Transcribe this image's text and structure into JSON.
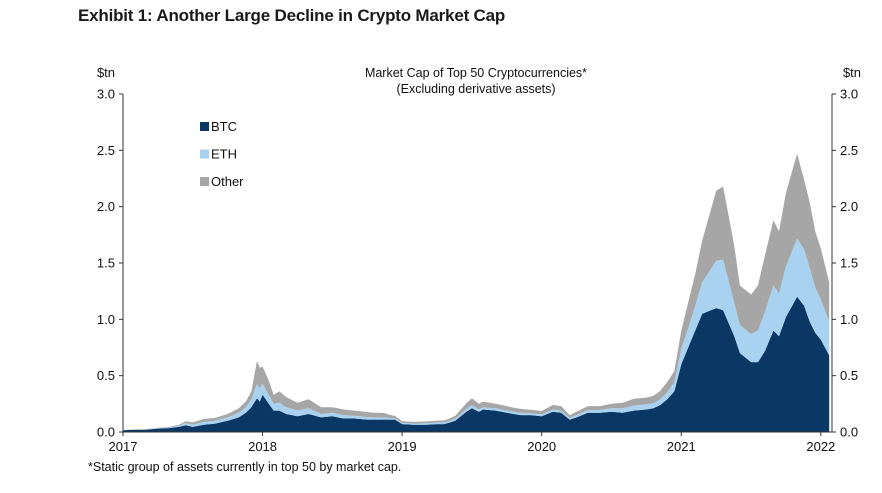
{
  "heading": "Exhibit 1: Another Large Decline in Crypto Market Cap",
  "footnote": "*Static group of assets currently in top 50 by market cap.",
  "colors": {
    "btc": "#0b3764",
    "eth": "#a8d2f0",
    "other": "#a6a6a6"
  },
  "chart_data": {
    "type": "area",
    "stacked": true,
    "title": "Market Cap of Top 50 Cryptocurrencies*",
    "subtitle": "(Excluding derivative assets)",
    "ylabel_left": "$tn",
    "ylabel_right": "$tn",
    "ylim": [
      0,
      3.0
    ],
    "yticks": [
      "0.0",
      "0.5",
      "1.0",
      "1.5",
      "2.0",
      "2.5",
      "3.0"
    ],
    "xlim": [
      2017.0,
      2022.08
    ],
    "xticks": [
      "2017",
      "2018",
      "2019",
      "2020",
      "2021",
      "2022"
    ],
    "legend_position": "top-left",
    "series": [
      {
        "name": "BTC",
        "color": "#0b3764",
        "values": [
          0.016,
          0.02,
          0.02,
          0.03,
          0.035,
          0.045,
          0.06,
          0.045,
          0.065,
          0.075,
          0.1,
          0.13,
          0.17,
          0.22,
          0.3,
          0.27,
          0.33,
          0.26,
          0.19,
          0.19,
          0.16,
          0.14,
          0.16,
          0.13,
          0.14,
          0.12,
          0.12,
          0.11,
          0.11,
          0.11,
          0.11,
          0.11,
          0.11,
          0.07,
          0.065,
          0.065,
          0.07,
          0.07,
          0.08,
          0.1,
          0.14,
          0.18,
          0.21,
          0.18,
          0.2,
          0.19,
          0.17,
          0.16,
          0.15,
          0.15,
          0.14,
          0.18,
          0.17,
          0.11,
          0.13,
          0.17,
          0.17,
          0.18,
          0.17,
          0.19,
          0.2,
          0.21,
          0.24,
          0.29,
          0.36,
          0.6,
          0.75,
          0.9,
          1.05,
          1.1,
          1.08,
          0.85,
          0.7,
          0.62,
          0.62,
          0.72,
          0.9,
          0.85,
          1.02,
          1.2,
          1.12,
          0.98,
          0.88,
          0.82,
          0.68
        ]
      },
      {
        "name": "ETH",
        "color": "#a8d2f0",
        "values": [
          0.001,
          0.001,
          0.001,
          0.002,
          0.005,
          0.01,
          0.02,
          0.02,
          0.025,
          0.025,
          0.03,
          0.04,
          0.05,
          0.07,
          0.13,
          0.12,
          0.1,
          0.08,
          0.06,
          0.07,
          0.06,
          0.05,
          0.05,
          0.03,
          0.03,
          0.03,
          0.025,
          0.022,
          0.02,
          0.02,
          0.018,
          0.015,
          0.012,
          0.01,
          0.01,
          0.012,
          0.014,
          0.014,
          0.015,
          0.018,
          0.02,
          0.025,
          0.03,
          0.02,
          0.02,
          0.02,
          0.02,
          0.02,
          0.02,
          0.017,
          0.016,
          0.02,
          0.02,
          0.015,
          0.02,
          0.025,
          0.025,
          0.03,
          0.04,
          0.045,
          0.045,
          0.045,
          0.05,
          0.065,
          0.08,
          0.14,
          0.17,
          0.22,
          0.28,
          0.42,
          0.45,
          0.3,
          0.25,
          0.25,
          0.28,
          0.35,
          0.4,
          0.38,
          0.45,
          0.52,
          0.5,
          0.48,
          0.4,
          0.36,
          0.3
        ]
      },
      {
        "name": "Other",
        "color": "#a6a6a6",
        "values": [
          0.002,
          0.002,
          0.003,
          0.004,
          0.005,
          0.008,
          0.015,
          0.02,
          0.025,
          0.025,
          0.03,
          0.04,
          0.05,
          0.07,
          0.2,
          0.18,
          0.15,
          0.13,
          0.08,
          0.1,
          0.09,
          0.07,
          0.08,
          0.06,
          0.05,
          0.05,
          0.045,
          0.045,
          0.04,
          0.04,
          0.038,
          0.03,
          0.02,
          0.015,
          0.015,
          0.016,
          0.017,
          0.018,
          0.02,
          0.025,
          0.04,
          0.05,
          0.06,
          0.05,
          0.05,
          0.04,
          0.04,
          0.035,
          0.035,
          0.03,
          0.03,
          0.04,
          0.04,
          0.025,
          0.03,
          0.035,
          0.035,
          0.04,
          0.05,
          0.06,
          0.06,
          0.065,
          0.075,
          0.09,
          0.1,
          0.16,
          0.23,
          0.28,
          0.37,
          0.62,
          0.65,
          0.5,
          0.35,
          0.35,
          0.4,
          0.5,
          0.58,
          0.55,
          0.65,
          0.75,
          0.62,
          0.58,
          0.5,
          0.45,
          0.35
        ]
      }
    ],
    "x": [
      2017.0,
      2017.08,
      2017.16,
      2017.25,
      2017.33,
      2017.4,
      2017.45,
      2017.5,
      2017.58,
      2017.66,
      2017.75,
      2017.83,
      2017.88,
      2017.92,
      2017.96,
      2017.98,
      2018.0,
      2018.04,
      2018.08,
      2018.12,
      2018.17,
      2018.25,
      2018.33,
      2018.42,
      2018.5,
      2018.58,
      2018.66,
      2018.75,
      2018.8,
      2018.85,
      2018.88,
      2018.9,
      2018.95,
      2019.0,
      2019.08,
      2019.17,
      2019.25,
      2019.3,
      2019.33,
      2019.38,
      2019.42,
      2019.46,
      2019.5,
      2019.55,
      2019.58,
      2019.67,
      2019.75,
      2019.8,
      2019.85,
      2019.92,
      2020.0,
      2020.08,
      2020.14,
      2020.2,
      2020.25,
      2020.33,
      2020.42,
      2020.5,
      2020.58,
      2020.66,
      2020.75,
      2020.8,
      2020.85,
      2020.9,
      2020.95,
      2021.0,
      2021.05,
      2021.1,
      2021.15,
      2021.25,
      2021.3,
      2021.38,
      2021.42,
      2021.5,
      2021.55,
      2021.6,
      2021.66,
      2021.7,
      2021.75,
      2021.83,
      2021.88,
      2021.92,
      2021.96,
      2022.0,
      2022.06
    ]
  }
}
